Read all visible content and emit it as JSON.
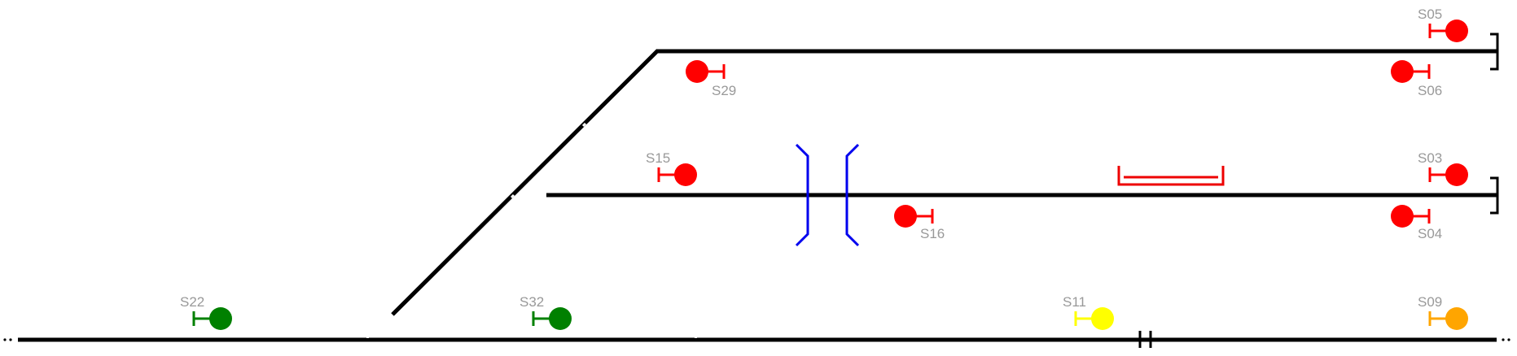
{
  "colors": {
    "track": "#000000",
    "label": "#999999",
    "bridge": "#0000ee",
    "platform": "#ee0000"
  },
  "signals": [
    {
      "id": "S05",
      "label": "S05",
      "state": "red",
      "color": "#ff0000",
      "facing": "left"
    },
    {
      "id": "S06",
      "label": "S06",
      "state": "red",
      "color": "#ff0000",
      "facing": "right"
    },
    {
      "id": "S29",
      "label": "S29",
      "state": "red",
      "color": "#ff0000",
      "facing": "right"
    },
    {
      "id": "S15",
      "label": "S15",
      "state": "red",
      "color": "#ff0000",
      "facing": "left"
    },
    {
      "id": "S03",
      "label": "S03",
      "state": "red",
      "color": "#ff0000",
      "facing": "left"
    },
    {
      "id": "S16",
      "label": "S16",
      "state": "red",
      "color": "#ff0000",
      "facing": "right"
    },
    {
      "id": "S04",
      "label": "S04",
      "state": "red",
      "color": "#ff0000",
      "facing": "right"
    },
    {
      "id": "S22",
      "label": "S22",
      "state": "green",
      "color": "#008000",
      "facing": "left"
    },
    {
      "id": "S32",
      "label": "S32",
      "state": "green",
      "color": "#008000",
      "facing": "left"
    },
    {
      "id": "S11",
      "label": "S11",
      "state": "yellow",
      "color": "#ffff00",
      "facing": "left"
    },
    {
      "id": "S09",
      "label": "S09",
      "state": "orange",
      "color": "#ffa500",
      "facing": "left"
    }
  ]
}
